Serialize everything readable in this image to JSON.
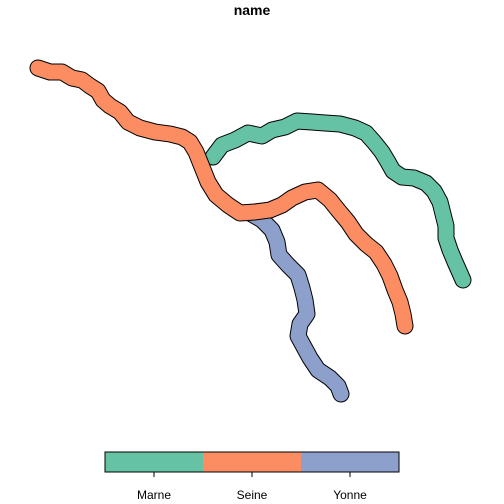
{
  "map": {
    "title": "name",
    "rivers": [
      {
        "name": "Marne",
        "color": "#66c2a5"
      },
      {
        "name": "Seine",
        "color": "#fc8d62"
      },
      {
        "name": "Yonne",
        "color": "#8da0cb"
      }
    ]
  },
  "legend": {
    "labels": [
      "Marne",
      "Seine",
      "Yonne"
    ],
    "colors": [
      "#66c2a5",
      "#fc8d62",
      "#8da0cb"
    ]
  }
}
